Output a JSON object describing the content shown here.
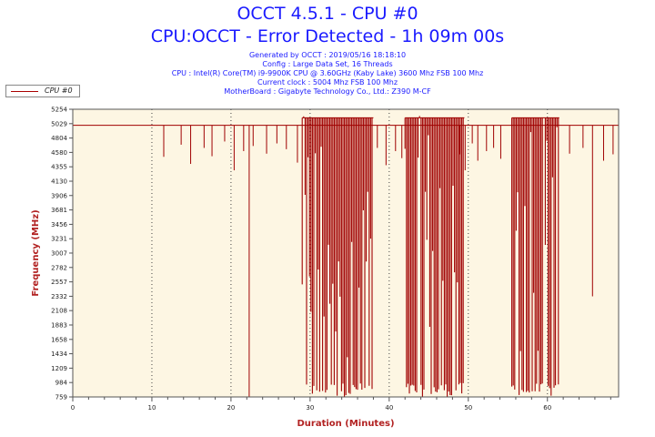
{
  "titles": {
    "line1": "OCCT 4.5.1 - CPU #0",
    "line2": "CPU:OCCT - Error Detected - 1h 09m 00s"
  },
  "info_lines": [
    "Generated by OCCT : 2019/05/16 18:18:10",
    "Config : Large Data Set, 16 Threads",
    "CPU : Intel(R) Core(TM) i9-9900K CPU @ 3.60GHz (Kaby Lake) 3600 Mhz FSB 100 Mhz",
    "Current clock : 5004 Mhz FSB 100 Mhz",
    "MotherBoard : Gigabyte Technology Co., Ltd.: Z390 M-CF"
  ],
  "colors": {
    "series": "#a00000",
    "plot_bg": "#fdf6e3",
    "title": "#1a1aff",
    "axis_label": "#b22222"
  },
  "chart_data": {
    "type": "line",
    "xlabel": "Duration (Minutes)",
    "ylabel": "Frequency (MHz)",
    "xlim": [
      0,
      69
    ],
    "ylim": [
      759,
      5254
    ],
    "xticks": [
      0,
      10,
      20,
      30,
      40,
      50,
      60
    ],
    "yticks": [
      759,
      984,
      1209,
      1434,
      1658,
      1883,
      2108,
      2332,
      2557,
      2782,
      3007,
      3231,
      3456,
      3681,
      3906,
      4130,
      4355,
      4580,
      4804,
      5029,
      5254
    ],
    "grid": "dotted vertical",
    "legend_position": "top-left",
    "series": [
      {
        "name": "CPU #0",
        "baseline": 5004,
        "peak": 5100,
        "dips": [
          [
            11.5,
            4510
          ],
          [
            13.7,
            4700
          ],
          [
            14.9,
            4400
          ],
          [
            16.6,
            4650
          ],
          [
            17.6,
            4520
          ],
          [
            19.2,
            4750
          ],
          [
            20.4,
            4300
          ],
          [
            21.6,
            4600
          ],
          [
            22.3,
            759
          ],
          [
            22.8,
            4680
          ],
          [
            24.5,
            4560
          ],
          [
            25.8,
            4720
          ],
          [
            27.0,
            4630
          ],
          [
            28.4,
            4420
          ],
          [
            38.5,
            4650
          ],
          [
            39.6,
            4380
          ],
          [
            40.8,
            4600
          ],
          [
            41.6,
            4490
          ],
          [
            48.9,
            4550
          ],
          [
            49.6,
            4300
          ],
          [
            50.5,
            4720
          ],
          [
            51.2,
            4450
          ],
          [
            52.3,
            4600
          ],
          [
            53.2,
            4650
          ],
          [
            54.1,
            4480
          ],
          [
            62.8,
            4560
          ],
          [
            64.5,
            4650
          ],
          [
            65.7,
            2330
          ],
          [
            67.1,
            4450
          ],
          [
            68.3,
            4550
          ]
        ],
        "error_bursts": [
          {
            "start": 29.0,
            "end": 38.0,
            "min": 759,
            "max": 5120
          },
          {
            "start": 42.0,
            "end": 49.5,
            "min": 759,
            "max": 5120
          },
          {
            "start": 55.5,
            "end": 61.5,
            "min": 759,
            "max": 5120
          }
        ]
      }
    ]
  }
}
